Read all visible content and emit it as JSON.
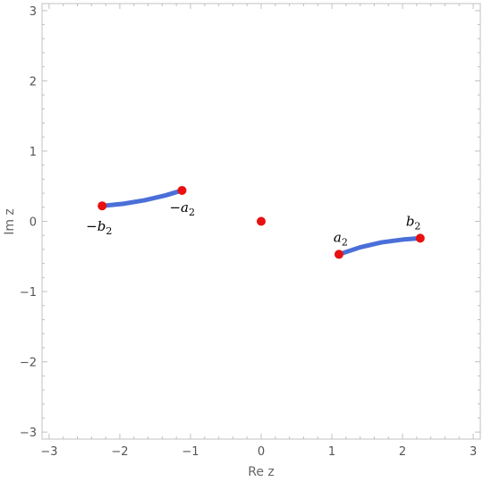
{
  "chart_data": {
    "type": "scatter",
    "xlabel": "Re z",
    "ylabel": "Im z",
    "xlim": [
      -3.1,
      3.1
    ],
    "ylim": [
      -3.1,
      3.1
    ],
    "xticks": [
      -3,
      -2,
      -1,
      0,
      1,
      2,
      3
    ],
    "yticks": [
      -3,
      -2,
      -1,
      0,
      1,
      2,
      3
    ],
    "grid": false,
    "colors": {
      "curve": "#4a6fd8",
      "point": "#e81010",
      "frame": "#c0c0c0"
    },
    "curves": [
      {
        "points": [
          [
            -2.25,
            0.22
          ],
          [
            -1.95,
            0.25
          ],
          [
            -1.65,
            0.3
          ],
          [
            -1.35,
            0.37
          ],
          [
            -1.12,
            0.44
          ]
        ]
      },
      {
        "points": [
          [
            1.1,
            -0.47
          ],
          [
            1.4,
            -0.37
          ],
          [
            1.7,
            -0.3
          ],
          [
            2.0,
            -0.26
          ],
          [
            2.25,
            -0.24
          ]
        ]
      }
    ],
    "points": [
      {
        "x": -2.25,
        "y": 0.22,
        "label": "-b2"
      },
      {
        "x": -1.12,
        "y": 0.44,
        "label": "-a2"
      },
      {
        "x": 0.0,
        "y": 0.0,
        "label": ""
      },
      {
        "x": 1.1,
        "y": -0.47,
        "label": "a2"
      },
      {
        "x": 2.25,
        "y": -0.24,
        "label": "b2"
      }
    ]
  }
}
